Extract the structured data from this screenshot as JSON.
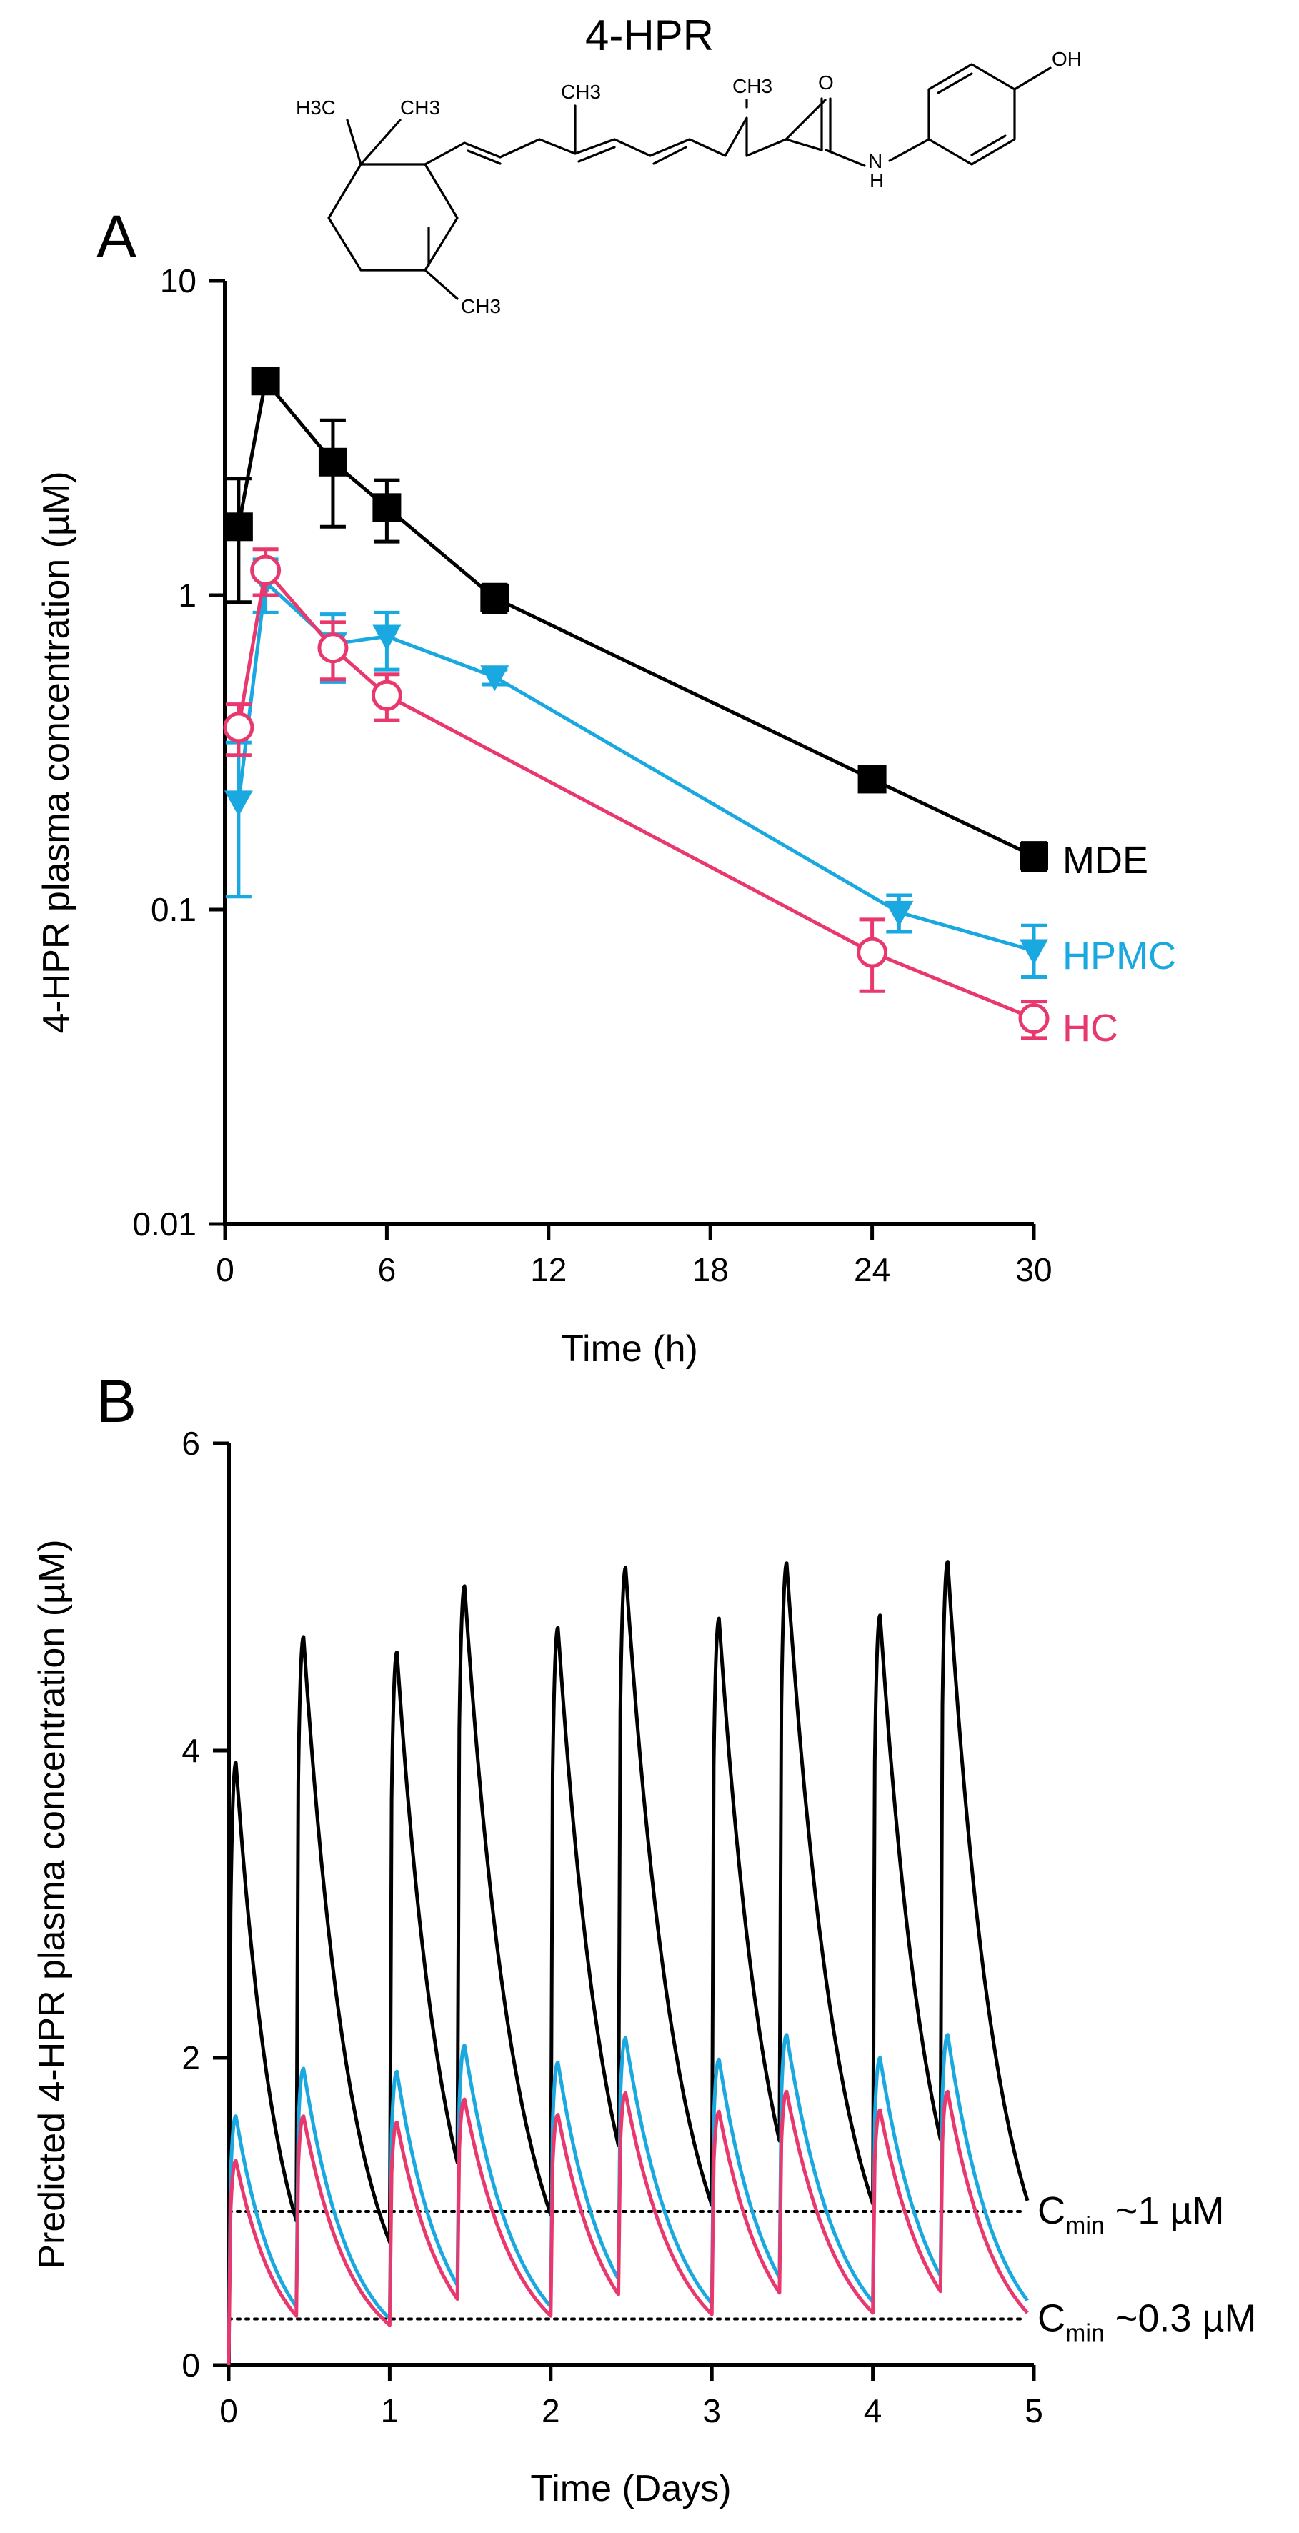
{
  "molecule": {
    "name": "4-HPR",
    "atoms": {
      "h3c1": "H3C",
      "ch3a": "CH3",
      "ch3b": "CH3",
      "ch3c": "CH3",
      "ch3d": "CH3",
      "ch3e": "CH3",
      "o": "O",
      "n": "N",
      "h": "H",
      "oh": "OH"
    }
  },
  "chart_data": [
    {
      "panel": "A",
      "type": "line",
      "xlabel": "Time (h)",
      "ylabel": "4-HPR plasma concentration (µM)",
      "xlim": [
        0,
        30
      ],
      "ylim": [
        0.01,
        10
      ],
      "yscale": "log",
      "xticks": [
        0,
        6,
        12,
        18,
        24,
        30
      ],
      "yticks": [
        0.01,
        0.1,
        1,
        10
      ],
      "ytick_labels": [
        "0.01",
        "0.1",
        "1",
        "10"
      ],
      "grid": false,
      "legend": "inline-right",
      "series": [
        {
          "name": "MDE",
          "color": "#000000",
          "marker": "square-filled",
          "x": [
            0.5,
            1.5,
            4,
            6,
            10,
            24,
            30
          ],
          "y": [
            1.65,
            4.8,
            2.65,
            1.9,
            0.98,
            0.26,
            0.148
          ],
          "err_low": [
            0.7,
            0.4,
            1.0,
            0.42,
            0.1,
            0.02,
            0.015
          ],
          "err_high": [
            0.7,
            0.45,
            0.95,
            0.42,
            0.1,
            0.02,
            0.015
          ]
        },
        {
          "name": "HPMC",
          "color": "#1aa8e0",
          "marker": "triangle-down-filled",
          "x": [
            0.5,
            1.5,
            4,
            6,
            10,
            25,
            30
          ],
          "y": [
            0.22,
            1.1,
            0.7,
            0.74,
            0.55,
            0.098,
            0.074
          ],
          "err_low": [
            0.11,
            0.22,
            0.17,
            0.16,
            0.03,
            0.013,
            0.013
          ],
          "err_high": [
            0.12,
            0.2,
            0.17,
            0.14,
            0.03,
            0.013,
            0.015
          ]
        },
        {
          "name": "HC",
          "color": "#e8386d",
          "marker": "circle-open",
          "x": [
            0.5,
            1.5,
            4,
            6,
            24,
            30
          ],
          "y": [
            0.38,
            1.2,
            0.68,
            0.48,
            0.073,
            0.045
          ],
          "err_low": [
            0.07,
            0.2,
            0.14,
            0.08,
            0.018,
            0.006
          ],
          "err_high": [
            0.07,
            0.2,
            0.14,
            0.08,
            0.02,
            0.006
          ]
        }
      ]
    },
    {
      "panel": "B",
      "type": "line",
      "xlabel": "Time (Days)",
      "ylabel": "Predicted 4-HPR plasma concentration (µM)",
      "xlim": [
        0,
        5
      ],
      "ylim": [
        0,
        6
      ],
      "xticks": [
        0,
        1,
        2,
        3,
        4,
        5
      ],
      "yticks": [
        0,
        2,
        4,
        6
      ],
      "grid": false,
      "dose_times": [
        0,
        0.42,
        1.0,
        1.42,
        2.0,
        2.42,
        3.0,
        3.42,
        4.0,
        4.42
      ],
      "series": [
        {
          "color": "#000000",
          "peaks": [
            3.92,
            4.74,
            4.64,
            5.07,
            4.8,
            5.19,
            4.86,
            5.22,
            4.88,
            5.23
          ],
          "troughs": [
            0.94,
            0.8,
            1.32,
            0.98,
            1.43,
            1.04,
            1.46,
            1.05,
            1.47,
            1.07
          ]
        },
        {
          "color": "#1aa8e0",
          "peaks": [
            1.62,
            1.93,
            1.91,
            2.08,
            1.97,
            2.13,
            1.99,
            2.15,
            2.0,
            2.15
          ],
          "troughs": [
            0.38,
            0.3,
            0.52,
            0.38,
            0.56,
            0.4,
            0.57,
            0.41,
            0.58,
            0.42
          ]
        },
        {
          "color": "#e8386d",
          "peaks": [
            1.33,
            1.62,
            1.58,
            1.73,
            1.63,
            1.77,
            1.65,
            1.78,
            1.66,
            1.78
          ],
          "troughs": [
            0.32,
            0.26,
            0.43,
            0.32,
            0.46,
            0.33,
            0.47,
            0.34,
            0.48,
            0.34
          ]
        }
      ],
      "reference_lines": [
        {
          "y": 1.0,
          "style": "dotted",
          "label_main": "C",
          "label_sub": "min",
          "label_rest": " ~1 µM"
        },
        {
          "y": 0.3,
          "style": "dotted",
          "label_main": "C",
          "label_sub": "min",
          "label_rest": " ~0.3 µM"
        }
      ]
    }
  ]
}
